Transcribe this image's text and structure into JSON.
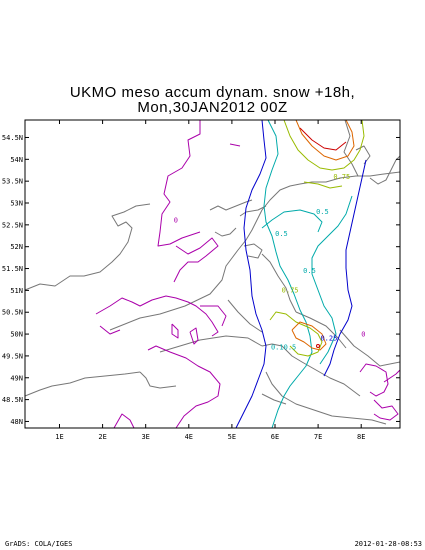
{
  "title_line1": "UKMO meso accum dynam. snow +18h,",
  "title_line2": "Mon,30JAN2012 00Z",
  "footer_left": "GrADS: COLA/IGES",
  "footer_right": "2012-01-28-08:53",
  "axes": {
    "lon_ticks": [
      1,
      2,
      3,
      4,
      5,
      6,
      7,
      8
    ],
    "lon_labels": [
      "1E",
      "2E",
      "3E",
      "4E",
      "5E",
      "6E",
      "7E",
      "8E"
    ],
    "lat_ticks": [
      48,
      48.5,
      49,
      49.5,
      50,
      50.5,
      51,
      51.5,
      52,
      52.5,
      53,
      53.5,
      54,
      54.5
    ],
    "lat_labels": [
      "48N",
      "48.5N",
      "49N",
      "49.5N",
      "50N",
      "50.5N",
      "51N",
      "51.5N",
      "52N",
      "52.5N",
      "53N",
      "53.5N",
      "54N",
      "54.5N"
    ],
    "lon_range": [
      0.2,
      8.9
    ],
    "lat_range": [
      47.85,
      54.9
    ]
  },
  "contour_labels": [
    {
      "text": "0",
      "lon": 3.7,
      "lat": 52.55,
      "color": "#aa00aa"
    },
    {
      "text": "0.75",
      "lon": 7.55,
      "lat": 53.55,
      "color": "#99bb00"
    },
    {
      "text": "0.5",
      "lon": 7.1,
      "lat": 52.75,
      "color": "#00aaaa"
    },
    {
      "text": "0.5",
      "lon": 6.15,
      "lat": 52.25,
      "color": "#00aaaa"
    },
    {
      "text": "0.5",
      "lon": 6.8,
      "lat": 51.4,
      "color": "#00aaaa"
    },
    {
      "text": "0.75",
      "lon": 6.35,
      "lat": 50.95,
      "color": "#99bb00"
    },
    {
      "text": "0.25",
      "lon": 7.25,
      "lat": 49.85,
      "color": "#0000cc"
    },
    {
      "text": "0.10.5",
      "lon": 6.2,
      "lat": 49.65,
      "color": "#00aaaa"
    },
    {
      "text": "0",
      "lon": 8.05,
      "lat": 49.95,
      "color": "#aa00aa"
    }
  ],
  "colors": {
    "coast": "#777777",
    "zero": "#aa00aa",
    "c025": "#0000cc",
    "c05": "#00aaaa",
    "c075": "#99bb00",
    "c1": "#dd6600",
    "c2": "#cc0000"
  }
}
